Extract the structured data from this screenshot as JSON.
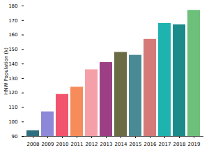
{
  "chart_data": {
    "type": "bar",
    "y_label": "HNW Population (k)",
    "categories": [
      "2008",
      "2009",
      "2010",
      "2011",
      "2012",
      "2013",
      "2014",
      "2015",
      "2016",
      "2017",
      "2018",
      "2019"
    ],
    "values": [
      94,
      107,
      119,
      124,
      136,
      141,
      148,
      146,
      157,
      168,
      167,
      177
    ],
    "colors": [
      "#2e6e7e",
      "#8e88d8",
      "#f2546e",
      "#f58c5a",
      "#f5a0a8",
      "#9c3f85",
      "#6b6b45",
      "#4a8a94",
      "#d47a78",
      "#1fb3b0",
      "#1a8a8a",
      "#6cc07a"
    ],
    "ylim": [
      90,
      180
    ],
    "yticks": [
      90,
      100,
      110,
      120,
      130,
      140,
      150,
      160,
      170,
      180
    ]
  }
}
